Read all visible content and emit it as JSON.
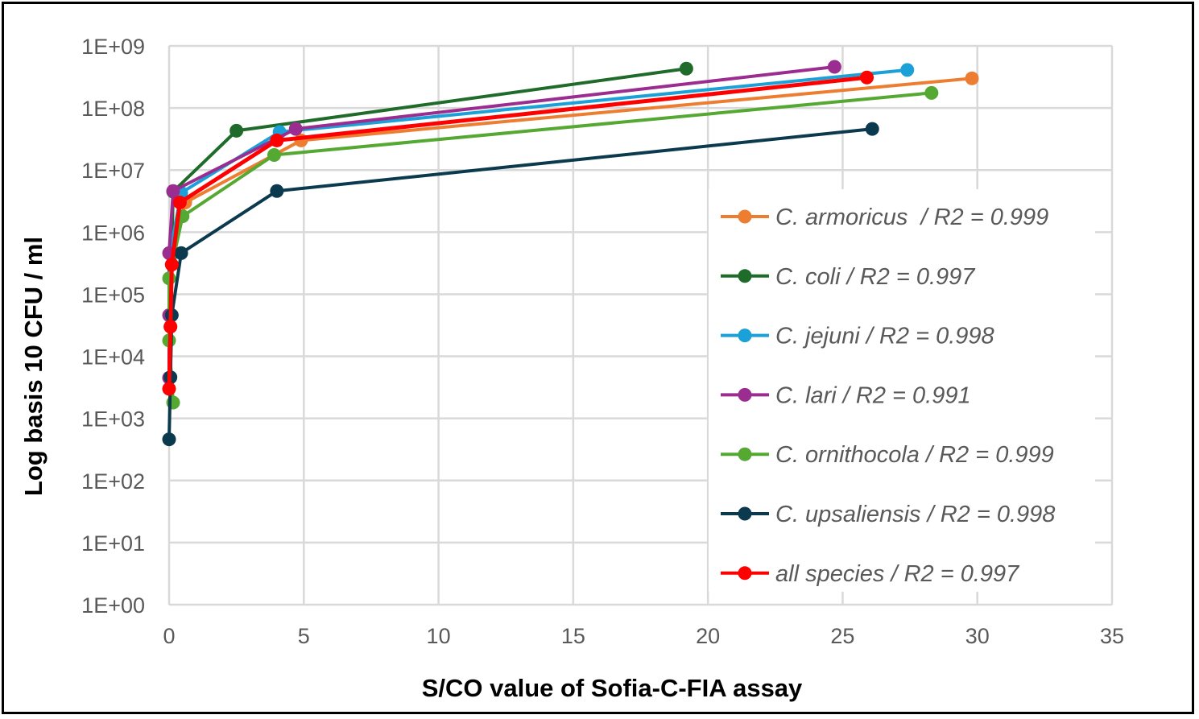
{
  "chart_data": {
    "type": "line",
    "title": "",
    "xlabel": "S/CO value of Sofia-C-FIA assay",
    "ylabel": "Log basis 10 CFU / ml",
    "xlim": [
      0,
      35
    ],
    "ylim": [
      1,
      1000000000
    ],
    "yscale": "log",
    "grid": true,
    "legend_position": "right",
    "x_ticks": [
      "0",
      "5",
      "10",
      "15",
      "20",
      "25",
      "30",
      "35"
    ],
    "x_tick_values": [
      0,
      5,
      10,
      15,
      20,
      25,
      30,
      35
    ],
    "y_ticks": [
      "1E+00",
      "1E+01",
      "1E+02",
      "1E+03",
      "1E+04",
      "1E+05",
      "1E+06",
      "1E+07",
      "1E+08",
      "1E+09"
    ],
    "y_tick_values": [
      1,
      10,
      100,
      1000,
      10000,
      100000,
      1000000,
      10000000,
      100000000,
      1000000000
    ],
    "series": [
      {
        "name": "C. armoricus  / R2 = 0.999",
        "color": "#ED7D31",
        "points": [
          [
            0.02,
            4500
          ],
          [
            0.05,
            30000
          ],
          [
            0.1,
            300000
          ],
          [
            0.6,
            3000000
          ],
          [
            4.9,
            30000000
          ],
          [
            29.8,
            300000000
          ]
        ]
      },
      {
        "name": "C. coli / R2 = 0.997",
        "color": "#1E6B2A",
        "points": [
          [
            0.03,
            4500
          ],
          [
            0.05,
            45000
          ],
          [
            0.1,
            450000
          ],
          [
            0.15,
            4500000
          ],
          [
            2.5,
            43000000
          ],
          [
            19.2,
            430000000
          ]
        ]
      },
      {
        "name": "C. jejuni / R2 = 0.998",
        "color": "#1BA1D8",
        "points": [
          [
            0.0,
            4500
          ],
          [
            0.02,
            45000
          ],
          [
            0.03,
            450000
          ],
          [
            0.45,
            4300000
          ],
          [
            4.1,
            41000000
          ],
          [
            27.4,
            410000000
          ]
        ]
      },
      {
        "name": "C. lari / R2 = 0.991",
        "color": "#9B2D91",
        "points": [
          [
            0.0,
            4500
          ],
          [
            0.0,
            46000
          ],
          [
            0.0,
            460000
          ],
          [
            0.15,
            4600000
          ],
          [
            4.7,
            46000000
          ],
          [
            24.7,
            460000000
          ]
        ]
      },
      {
        "name": "C. ornithocola / R2 = 0.999",
        "color": "#55A832",
        "points": [
          [
            0.15,
            1800
          ],
          [
            0.0,
            18000
          ],
          [
            0.0,
            180000
          ],
          [
            0.5,
            1800000
          ],
          [
            3.9,
            17500000
          ],
          [
            28.3,
            175000000
          ]
        ]
      },
      {
        "name": "C. upsaliensis / R2 = 0.998",
        "color": "#0B3A4F",
        "points": [
          [
            0.0,
            460
          ],
          [
            0.05,
            4600
          ],
          [
            0.1,
            46000
          ],
          [
            0.45,
            460000
          ],
          [
            4.0,
            4600000
          ],
          [
            26.1,
            46000000
          ]
        ]
      },
      {
        "name": "all species / R2 = 0.997",
        "color": "#FF0000",
        "points": [
          [
            0.0,
            3000
          ],
          [
            0.05,
            30000
          ],
          [
            0.1,
            300000
          ],
          [
            0.4,
            3000000
          ],
          [
            4.0,
            30000000
          ],
          [
            25.9,
            310000000
          ]
        ]
      }
    ]
  }
}
